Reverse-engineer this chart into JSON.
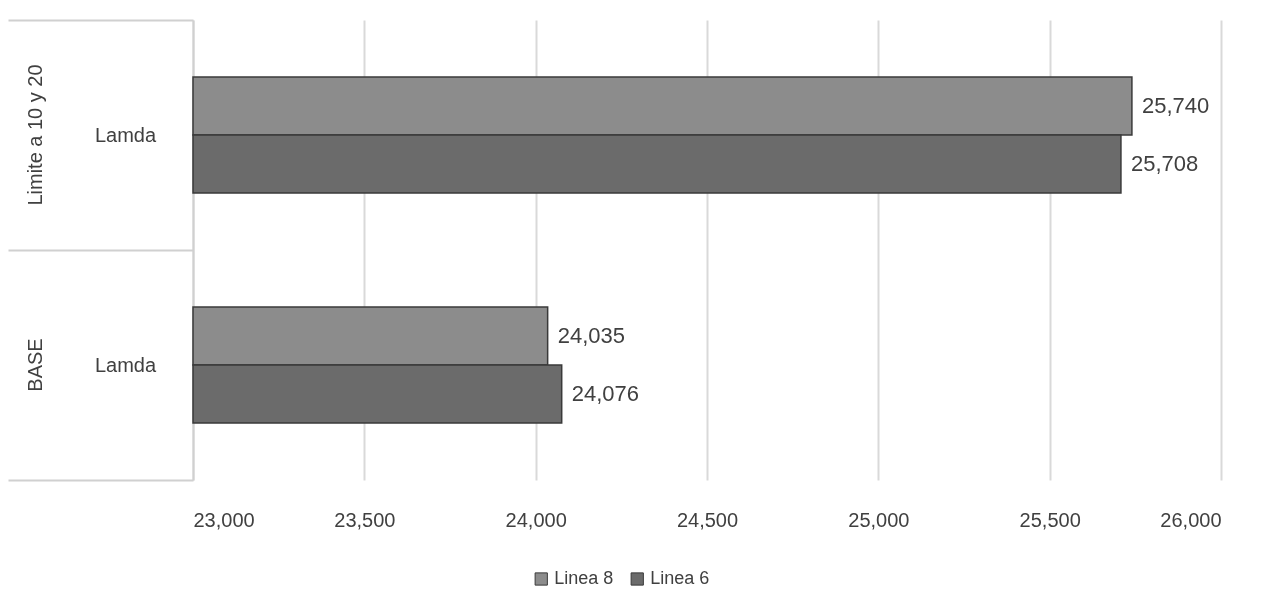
{
  "chart_data": {
    "type": "bar",
    "orientation": "horizontal",
    "categories": [
      "Lamda",
      "Lamda"
    ],
    "series": [
      {
        "name": "Linea 8",
        "color": "#8c8c8c",
        "values": [
          25740,
          24035
        ],
        "value_labels": [
          "25,740",
          "24,035"
        ]
      },
      {
        "name": "Linea 6",
        "color": "#6b6b6b",
        "values": [
          25708,
          24076
        ],
        "value_labels": [
          "25,708",
          "24,076"
        ]
      }
    ],
    "xlim": [
      23000,
      26000
    ],
    "xticks": [
      {
        "value": 23000,
        "label": "23,000"
      },
      {
        "value": 23500,
        "label": "23,500"
      },
      {
        "value": 24000,
        "label": "24,000"
      },
      {
        "value": 24500,
        "label": "24,500"
      },
      {
        "value": 25000,
        "label": "25,000"
      },
      {
        "value": 25500,
        "label": "25,500"
      },
      {
        "value": 26000,
        "label": "26,000"
      }
    ],
    "grid": "x",
    "legend": "bottom",
    "annotations": [
      "Limite a 10 y 20",
      "BASE"
    ]
  }
}
